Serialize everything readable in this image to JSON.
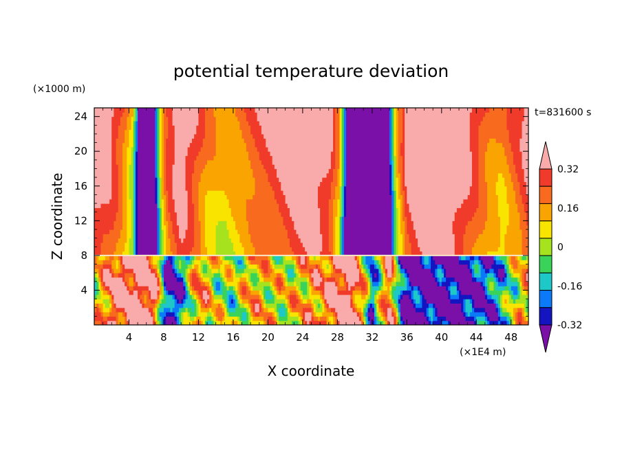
{
  "chart_data": {
    "type": "heatmap",
    "title": "potential temperature deviation",
    "xlabel": "X coordinate",
    "ylabel": "Z coordinate",
    "x_unit": "(×1E4 m)",
    "y_unit": "(×1000 m)",
    "time_label": "t=831600 s",
    "xlim": [
      0,
      50
    ],
    "ylim": [
      0,
      25
    ],
    "x_ticks": [
      4,
      8,
      12,
      16,
      20,
      24,
      28,
      32,
      36,
      40,
      44,
      48
    ],
    "y_ticks": [
      4,
      8,
      12,
      16,
      20,
      24
    ],
    "colorbar": {
      "levels": [
        -0.4,
        -0.32,
        -0.24,
        -0.16,
        -0.08,
        0,
        0.08,
        0.16,
        0.24,
        0.32,
        0.4
      ],
      "labels": [
        "0.32",
        "0.16",
        "0",
        "-0.16",
        "-0.32"
      ],
      "label_values": [
        0.32,
        0.16,
        0,
        -0.16,
        -0.32
      ],
      "colors": [
        "#f9aaaa",
        "#f03a2a",
        "#f86a1e",
        "#f9a400",
        "#f9e400",
        "#a6e21e",
        "#3ad35a",
        "#1ec8c8",
        "#0a7af8",
        "#1414c0",
        "#7a10a8"
      ],
      "extend_top_color": "#f9aaaa",
      "extend_bottom_color": "#7a10a8"
    },
    "upper_layer_profile": [
      {
        "x": 0,
        "v": 0.36
      },
      {
        "x": 2,
        "v": 0.28
      },
      {
        "x": 3.5,
        "v": 0.12
      },
      {
        "x": 4.4,
        "v": -0.05
      },
      {
        "x": 5,
        "v": -0.45
      },
      {
        "x": 7,
        "v": -0.45
      },
      {
        "x": 7.8,
        "v": 0.05
      },
      {
        "x": 8.5,
        "v": 0.22
      },
      {
        "x": 10,
        "v": 0.36
      },
      {
        "x": 11.5,
        "v": 0.24
      },
      {
        "x": 13,
        "v": 0.1
      },
      {
        "x": 15,
        "v": 0.04
      },
      {
        "x": 17,
        "v": 0.12
      },
      {
        "x": 19,
        "v": 0.2
      },
      {
        "x": 21,
        "v": 0.26
      },
      {
        "x": 23,
        "v": 0.34
      },
      {
        "x": 25,
        "v": 0.38
      },
      {
        "x": 27,
        "v": 0.3
      },
      {
        "x": 28.2,
        "v": 0.08
      },
      {
        "x": 29,
        "v": -0.45
      },
      {
        "x": 34,
        "v": -0.45
      },
      {
        "x": 34.8,
        "v": 0.02
      },
      {
        "x": 36,
        "v": 0.3
      },
      {
        "x": 38,
        "v": 0.42
      },
      {
        "x": 40,
        "v": 0.42
      },
      {
        "x": 42,
        "v": 0.36
      },
      {
        "x": 44,
        "v": 0.22
      },
      {
        "x": 45.5,
        "v": 0.12
      },
      {
        "x": 47,
        "v": 0.08
      },
      {
        "x": 48.5,
        "v": 0.18
      },
      {
        "x": 50,
        "v": 0.3
      }
    ],
    "lower_layer_profile": [
      {
        "x": 0,
        "v": 0.0
      },
      {
        "x": 2,
        "v": 0.3
      },
      {
        "x": 4,
        "v": 0.38
      },
      {
        "x": 5.5,
        "v": 0.42
      },
      {
        "x": 7,
        "v": 0.3
      },
      {
        "x": 8.5,
        "v": -0.45
      },
      {
        "x": 10,
        "v": -0.3
      },
      {
        "x": 12,
        "v": 0.2
      },
      {
        "x": 14,
        "v": 0.0
      },
      {
        "x": 16,
        "v": -0.08
      },
      {
        "x": 18,
        "v": 0.12
      },
      {
        "x": 20,
        "v": 0.05
      },
      {
        "x": 22,
        "v": 0.02
      },
      {
        "x": 24,
        "v": 0.1
      },
      {
        "x": 26,
        "v": 0.18
      },
      {
        "x": 28,
        "v": 0.36
      },
      {
        "x": 29.5,
        "v": 0.42
      },
      {
        "x": 31,
        "v": 0.1
      },
      {
        "x": 32,
        "v": -0.3
      },
      {
        "x": 34,
        "v": 0.3
      },
      {
        "x": 35.5,
        "v": -0.4
      },
      {
        "x": 38,
        "v": -0.45
      },
      {
        "x": 42,
        "v": -0.45
      },
      {
        "x": 45,
        "v": -0.36
      },
      {
        "x": 47,
        "v": -0.2
      },
      {
        "x": 49,
        "v": 0.05
      },
      {
        "x": 50,
        "v": 0.1
      }
    ],
    "layer_boundary_z": 8
  }
}
